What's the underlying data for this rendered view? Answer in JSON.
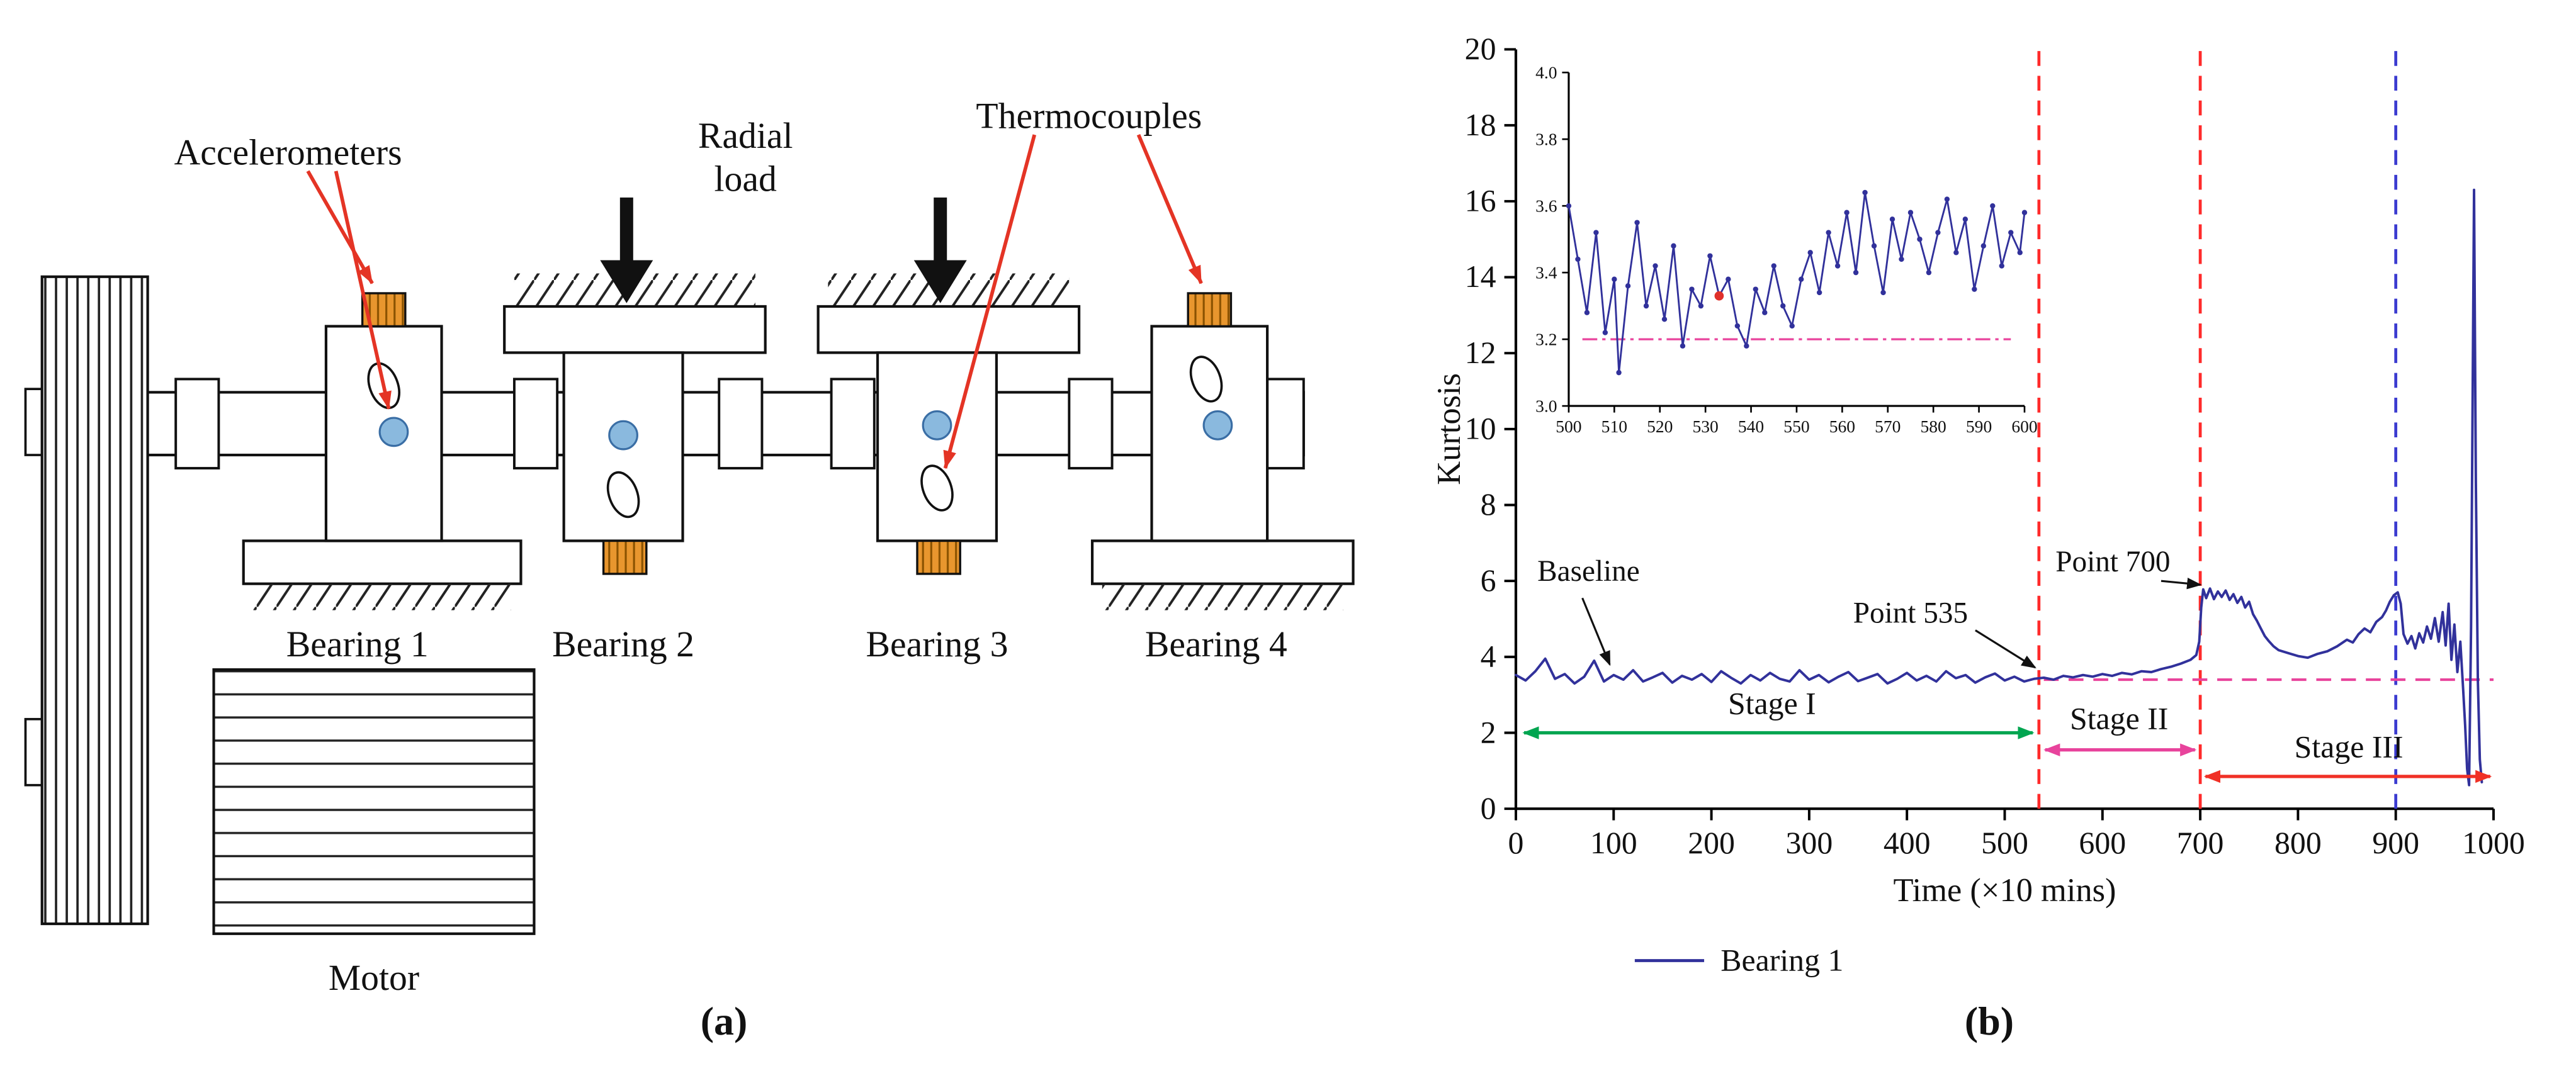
{
  "figure": {
    "panel_a": "(a)",
    "panel_b": "(b)"
  },
  "diagram": {
    "accelerometers_label": "Accelerometers",
    "radial_load_line1": "Radial",
    "radial_load_line2": "load",
    "thermocouples_label": "Thermocouples",
    "bearing1_label": "Bearing 1",
    "bearing2_label": "Bearing 2",
    "bearing3_label": "Bearing 3",
    "bearing4_label": "Bearing 4",
    "motor_label": "Motor",
    "colors": {
      "arrow_red": "#e43425",
      "sensor_blue": "#8ab9de",
      "accelerometer_orange": "#e8962e"
    }
  },
  "chart_data": {
    "type": "line",
    "title": "",
    "xlabel": "Time (×10 mins)",
    "ylabel": "Kurtosis",
    "xlim": [
      0,
      1000
    ],
    "ylim": [
      0,
      20
    ],
    "grid": false,
    "legend_position": "bottom-left",
    "x_ticks": [
      "0",
      "100",
      "200",
      "300",
      "400",
      "500",
      "600",
      "700",
      "800",
      "900",
      "1000"
    ],
    "y_ticks": [
      "0",
      "2",
      "4",
      "6",
      "8",
      "10",
      "12",
      "14",
      "16",
      "18",
      "20"
    ],
    "legend": [
      {
        "label": "Bearing 1",
        "color": "#31319b"
      }
    ],
    "series": [
      {
        "name": "Bearing 1",
        "color": "#31319b",
        "points": [
          [
            0,
            3.52
          ],
          [
            10,
            3.38
          ],
          [
            20,
            3.62
          ],
          [
            30,
            3.95
          ],
          [
            40,
            3.42
          ],
          [
            50,
            3.55
          ],
          [
            60,
            3.3
          ],
          [
            70,
            3.48
          ],
          [
            80,
            3.9
          ],
          [
            90,
            3.35
          ],
          [
            100,
            3.52
          ],
          [
            110,
            3.4
          ],
          [
            120,
            3.65
          ],
          [
            130,
            3.35
          ],
          [
            140,
            3.46
          ],
          [
            150,
            3.58
          ],
          [
            160,
            3.32
          ],
          [
            170,
            3.5
          ],
          [
            180,
            3.4
          ],
          [
            190,
            3.55
          ],
          [
            200,
            3.34
          ],
          [
            210,
            3.62
          ],
          [
            220,
            3.45
          ],
          [
            230,
            3.3
          ],
          [
            240,
            3.52
          ],
          [
            250,
            3.38
          ],
          [
            260,
            3.58
          ],
          [
            270,
            3.42
          ],
          [
            280,
            3.35
          ],
          [
            290,
            3.65
          ],
          [
            300,
            3.4
          ],
          [
            310,
            3.52
          ],
          [
            320,
            3.33
          ],
          [
            330,
            3.48
          ],
          [
            340,
            3.6
          ],
          [
            350,
            3.36
          ],
          [
            360,
            3.45
          ],
          [
            370,
            3.55
          ],
          [
            380,
            3.3
          ],
          [
            390,
            3.42
          ],
          [
            400,
            3.58
          ],
          [
            410,
            3.38
          ],
          [
            420,
            3.5
          ],
          [
            430,
            3.35
          ],
          [
            440,
            3.62
          ],
          [
            450,
            3.44
          ],
          [
            460,
            3.52
          ],
          [
            470,
            3.32
          ],
          [
            480,
            3.46
          ],
          [
            490,
            3.56
          ],
          [
            500,
            3.38
          ],
          [
            510,
            3.48
          ],
          [
            520,
            3.35
          ],
          [
            530,
            3.42
          ],
          [
            540,
            3.45
          ],
          [
            550,
            3.4
          ],
          [
            560,
            3.5
          ],
          [
            570,
            3.46
          ],
          [
            580,
            3.52
          ],
          [
            590,
            3.48
          ],
          [
            600,
            3.55
          ],
          [
            610,
            3.5
          ],
          [
            620,
            3.58
          ],
          [
            630,
            3.54
          ],
          [
            640,
            3.62
          ],
          [
            650,
            3.6
          ],
          [
            660,
            3.68
          ],
          [
            670,
            3.74
          ],
          [
            680,
            3.82
          ],
          [
            690,
            3.92
          ],
          [
            696,
            4.05
          ],
          [
            699,
            4.4
          ],
          [
            701,
            5.3
          ],
          [
            703,
            5.78
          ],
          [
            706,
            5.55
          ],
          [
            710,
            5.8
          ],
          [
            714,
            5.52
          ],
          [
            718,
            5.72
          ],
          [
            722,
            5.58
          ],
          [
            726,
            5.75
          ],
          [
            730,
            5.5
          ],
          [
            734,
            5.65
          ],
          [
            738,
            5.42
          ],
          [
            742,
            5.58
          ],
          [
            746,
            5.3
          ],
          [
            750,
            5.45
          ],
          [
            754,
            5.12
          ],
          [
            758,
            4.95
          ],
          [
            762,
            4.75
          ],
          [
            766,
            4.55
          ],
          [
            770,
            4.42
          ],
          [
            775,
            4.28
          ],
          [
            780,
            4.18
          ],
          [
            790,
            4.1
          ],
          [
            800,
            4.02
          ],
          [
            810,
            3.98
          ],
          [
            820,
            4.08
          ],
          [
            830,
            4.15
          ],
          [
            840,
            4.28
          ],
          [
            850,
            4.45
          ],
          [
            856,
            4.38
          ],
          [
            862,
            4.6
          ],
          [
            868,
            4.75
          ],
          [
            874,
            4.65
          ],
          [
            880,
            4.92
          ],
          [
            886,
            5.05
          ],
          [
            890,
            5.22
          ],
          [
            894,
            5.45
          ],
          [
            898,
            5.62
          ],
          [
            902,
            5.7
          ],
          [
            905,
            5.4
          ],
          [
            908,
            4.6
          ],
          [
            912,
            4.35
          ],
          [
            916,
            4.55
          ],
          [
            920,
            4.22
          ],
          [
            924,
            4.62
          ],
          [
            928,
            4.38
          ],
          [
            932,
            4.8
          ],
          [
            936,
            4.48
          ],
          [
            940,
            5.02
          ],
          [
            944,
            4.4
          ],
          [
            948,
            5.18
          ],
          [
            951,
            4.3
          ],
          [
            954,
            5.4
          ],
          [
            957,
            3.92
          ],
          [
            960,
            4.85
          ],
          [
            963,
            3.6
          ],
          [
            966,
            4.4
          ],
          [
            969,
            3.15
          ],
          [
            971,
            2.2
          ],
          [
            973,
            1.05
          ],
          [
            975,
            0.62
          ],
          [
            977,
            4.8
          ],
          [
            979,
            12.5
          ],
          [
            980,
            16.3
          ],
          [
            982,
            8.6
          ],
          [
            984,
            3.4
          ],
          [
            986,
            1.3
          ],
          [
            988,
            0.7
          ]
        ]
      }
    ],
    "reference_lines": [
      {
        "type": "vline",
        "x": 535,
        "color": "#ff2a2a",
        "style": "dashed"
      },
      {
        "type": "vline",
        "x": 700,
        "color": "#ff2a2a",
        "style": "dashed"
      },
      {
        "type": "vline",
        "x": 900,
        "color": "#3b3bd0",
        "style": "dashed"
      },
      {
        "type": "hline",
        "y": 3.4,
        "x1": 540,
        "x2": 1000,
        "color": "#e8439c",
        "style": "dashed"
      }
    ],
    "stage_arrows": [
      {
        "label": "Stage I",
        "x1": 5,
        "x2": 532,
        "y": 2.0,
        "color": "#00a550",
        "label_x": 262,
        "label_y": 2.5
      },
      {
        "label": "Stage II",
        "x1": 538,
        "x2": 698,
        "y": 1.55,
        "color": "#e8439c",
        "label_x": 617,
        "label_y": 2.1
      },
      {
        "label": "Stage III",
        "x1": 702,
        "x2": 1000,
        "y": 0.85,
        "color": "#f03026",
        "label_x": 852,
        "label_y": 1.35
      }
    ],
    "annotations": [
      {
        "text": "Baseline",
        "tx": 22,
        "ty": 6.0,
        "ax1": 68,
        "ay1": 5.55,
        "ax2": 96,
        "ay2": 3.8
      },
      {
        "text": "Point 535",
        "tx": 345,
        "ty": 4.9,
        "ax1": 470,
        "ay1": 4.7,
        "ax2": 531,
        "ay2": 3.72
      },
      {
        "text": "Point 700",
        "tx": 552,
        "ty": 6.25,
        "ax1": 660,
        "ay1": 6.0,
        "ax2": 700,
        "ay2": 5.9
      }
    ],
    "inset": {
      "xlim": [
        500,
        600
      ],
      "ylim": [
        3.0,
        4.0
      ],
      "x_ticks": [
        "500",
        "510",
        "520",
        "530",
        "540",
        "550",
        "560",
        "570",
        "580",
        "590",
        "600"
      ],
      "y_ticks": [
        "3.0",
        "3.2",
        "3.4",
        "3.6",
        "3.8",
        "4.0"
      ],
      "hline": {
        "y": 3.2,
        "x1": 503,
        "x2": 597,
        "color": "#e8439c",
        "style": "dashdot"
      },
      "marker": {
        "x": 533,
        "y": 3.33,
        "color": "#e0302a"
      },
      "points": [
        [
          500,
          3.6
        ],
        [
          502,
          3.44
        ],
        [
          504,
          3.28
        ],
        [
          506,
          3.52
        ],
        [
          508,
          3.22
        ],
        [
          510,
          3.38
        ],
        [
          511,
          3.1
        ],
        [
          513,
          3.36
        ],
        [
          515,
          3.55
        ],
        [
          517,
          3.3
        ],
        [
          519,
          3.42
        ],
        [
          521,
          3.26
        ],
        [
          523,
          3.48
        ],
        [
          525,
          3.18
        ],
        [
          527,
          3.35
        ],
        [
          529,
          3.3
        ],
        [
          531,
          3.45
        ],
        [
          533,
          3.33
        ],
        [
          535,
          3.38
        ],
        [
          537,
          3.24
        ],
        [
          539,
          3.18
        ],
        [
          541,
          3.35
        ],
        [
          543,
          3.28
        ],
        [
          545,
          3.42
        ],
        [
          547,
          3.3
        ],
        [
          549,
          3.24
        ],
        [
          551,
          3.38
        ],
        [
          553,
          3.46
        ],
        [
          555,
          3.34
        ],
        [
          557,
          3.52
        ],
        [
          559,
          3.42
        ],
        [
          561,
          3.58
        ],
        [
          563,
          3.4
        ],
        [
          565,
          3.64
        ],
        [
          567,
          3.48
        ],
        [
          569,
          3.34
        ],
        [
          571,
          3.56
        ],
        [
          573,
          3.44
        ],
        [
          575,
          3.58
        ],
        [
          577,
          3.5
        ],
        [
          579,
          3.4
        ],
        [
          581,
          3.52
        ],
        [
          583,
          3.62
        ],
        [
          585,
          3.46
        ],
        [
          587,
          3.56
        ],
        [
          589,
          3.35
        ],
        [
          591,
          3.48
        ],
        [
          593,
          3.6
        ],
        [
          595,
          3.42
        ],
        [
          597,
          3.52
        ],
        [
          599,
          3.46
        ],
        [
          600,
          3.58
        ]
      ]
    }
  }
}
